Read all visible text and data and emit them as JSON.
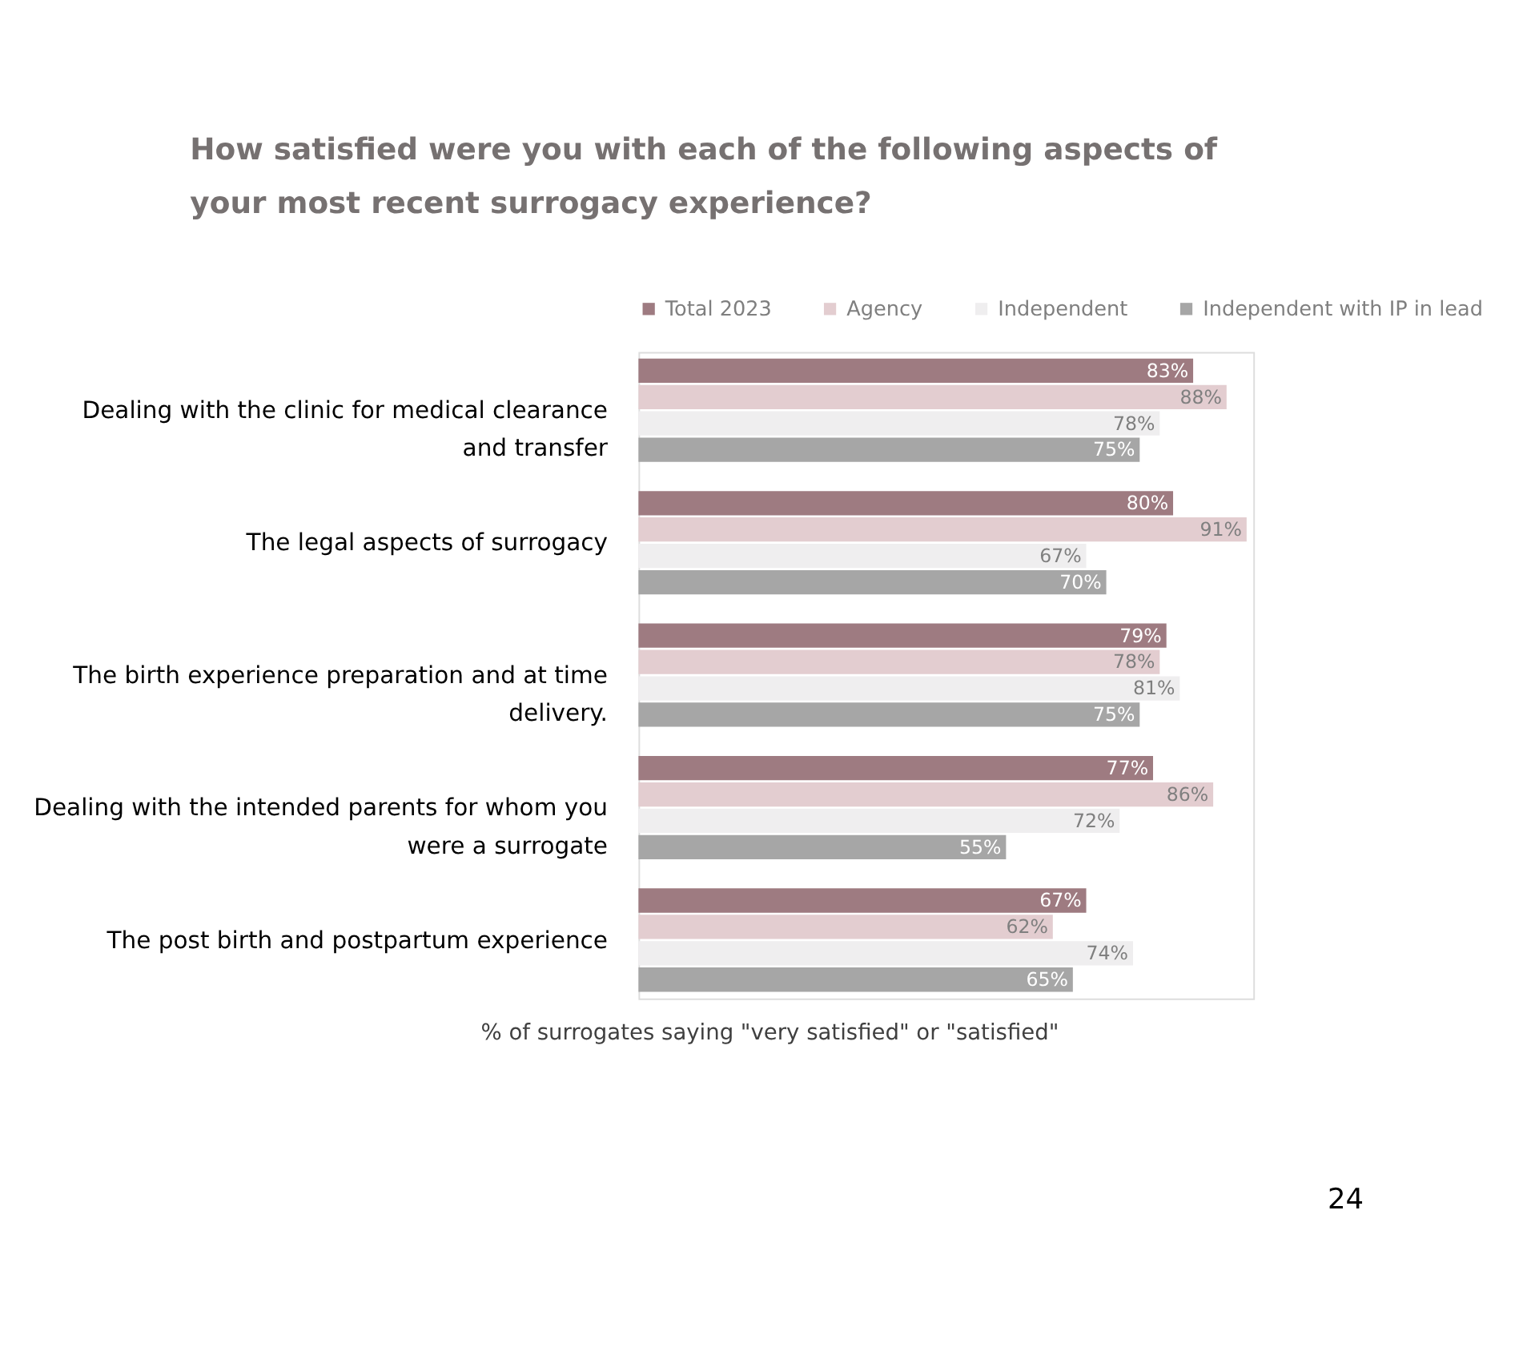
{
  "chart_data": {
    "type": "bar",
    "orientation": "horizontal",
    "title": "How satisfied were you with each of the following aspects of your most recent surrogacy experience?",
    "categories": [
      "Dealing with the clinic for medical clearance and transfer",
      "The legal aspects of surrogacy",
      "The birth experience preparation and at time delivery.",
      "Dealing with the intended parents for whom you were a surrogate",
      "The post birth and postpartum experience"
    ],
    "series": [
      {
        "name": "Total 2023",
        "color": "#9e7b81",
        "values": [
          83,
          80,
          79,
          77,
          67
        ],
        "value_labels": [
          "83%",
          "80%",
          "79%",
          "77%",
          "67%"
        ]
      },
      {
        "name": "Agency",
        "color": "#e3cdd0",
        "values": [
          88,
          91,
          78,
          86,
          62
        ],
        "value_labels": [
          "88%",
          "91%",
          "78%",
          "86%",
          "62%"
        ]
      },
      {
        "name": "Independent",
        "color": "#efeeef",
        "values": [
          78,
          67,
          81,
          72,
          74
        ],
        "value_labels": [
          "78%",
          "67%",
          "81%",
          "72%",
          "74%"
        ]
      },
      {
        "name": "Independent with IP in lead",
        "color": "#a6a6a6",
        "values": [
          75,
          70,
          75,
          55,
          65
        ],
        "value_labels": [
          "75%",
          "70%",
          "75%",
          "55%",
          "65%"
        ]
      }
    ],
    "xlim": [
      0,
      92
    ],
    "tick_labels": "y",
    "grid": false,
    "legend": "top",
    "annotations": [
      "% of surrogates saying \"very satisfied\" or \"satisfied\"",
      "24"
    ]
  }
}
